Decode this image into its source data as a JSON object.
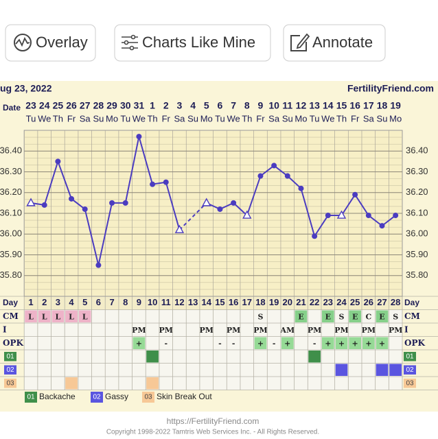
{
  "buttons": [
    "Overlay",
    "Charts Like Mine",
    "Annotate"
  ],
  "chart_data": {
    "type": "line",
    "title": "ug 23, 2022",
    "source": "FertilityFriend.com",
    "x_label": "Date",
    "categories": [
      "23",
      "24",
      "25",
      "26",
      "27",
      "28",
      "29",
      "30",
      "31",
      "1",
      "2",
      "3",
      "4",
      "5",
      "6",
      "7",
      "8",
      "9",
      "10",
      "11",
      "12",
      "13",
      "14",
      "15",
      "16",
      "17",
      "18",
      "19"
    ],
    "weekdays": [
      "Tu",
      "We",
      "Th",
      "Fr",
      "Sa",
      "Su",
      "Mo",
      "Tu",
      "We",
      "Th",
      "Fr",
      "Sa",
      "Su",
      "Mo",
      "Tu",
      "We",
      "Th",
      "Fr",
      "Sa",
      "Su",
      "Mo",
      "Tu",
      "We",
      "Th",
      "Fr",
      "Sa",
      "Su",
      "Mo"
    ],
    "series": [
      {
        "color": "#4b3cc0",
        "values": [
          36.15,
          36.14,
          36.35,
          36.17,
          36.12,
          35.85,
          36.15,
          36.15,
          36.47,
          36.24,
          36.25,
          36.02,
          null,
          36.15,
          36.12,
          36.15,
          36.09,
          36.28,
          36.33,
          36.28,
          36.22,
          35.99,
          36.09,
          36.09,
          36.19,
          36.09,
          36.04,
          36.09
        ],
        "open_points": [
          0,
          11,
          13,
          16,
          23
        ]
      }
    ],
    "ylim": [
      35.7,
      36.5
    ],
    "yticks": [
      {
        "value": 35.8,
        "label": "35.80"
      },
      {
        "value": 35.9,
        "label": "35.90"
      },
      {
        "value": 36.0,
        "label": "36.00"
      },
      {
        "value": 36.1,
        "label": "36.10"
      },
      {
        "value": 36.2,
        "label": "36.20"
      },
      {
        "value": 36.3,
        "label": "36.30"
      },
      {
        "value": 36.4,
        "label": "36.40"
      }
    ],
    "grid": true
  },
  "table": {
    "day_label": "Day",
    "days": [
      1,
      2,
      3,
      4,
      5,
      6,
      7,
      8,
      9,
      10,
      11,
      12,
      13,
      14,
      15,
      16,
      17,
      18,
      19,
      20,
      21,
      22,
      23,
      24,
      25,
      26,
      27,
      28
    ],
    "cell_colors": {
      "L": "#eeb3c8",
      "E": "#86d08a",
      "+": "#96da96"
    },
    "rows": [
      {
        "label": "CM",
        "cells": [
          "L",
          "L",
          "L",
          "L",
          "L",
          null,
          null,
          null,
          null,
          null,
          null,
          null,
          null,
          null,
          null,
          null,
          null,
          "S",
          null,
          null,
          "E",
          null,
          "E",
          "S",
          "E",
          "C",
          "E",
          "S"
        ]
      },
      {
        "label": "I",
        "cells": [
          null,
          null,
          null,
          null,
          null,
          null,
          null,
          null,
          "PM",
          null,
          "PM",
          null,
          null,
          "PM",
          null,
          "PM",
          null,
          "PM",
          null,
          "AM",
          null,
          "PM",
          null,
          "PM",
          null,
          "PM",
          null,
          "PM"
        ]
      },
      {
        "label": "OPK",
        "cells": [
          null,
          null,
          null,
          null,
          null,
          null,
          null,
          null,
          "+",
          null,
          "-",
          null,
          null,
          null,
          "-",
          "-",
          null,
          "+",
          "-",
          "+",
          null,
          "-",
          "+",
          "+",
          "+",
          "+",
          "+",
          null
        ]
      }
    ],
    "symptoms": [
      {
        "code": "01",
        "name": "Backache",
        "color": "#3f8f4a",
        "days": [
          10,
          22
        ]
      },
      {
        "code": "02",
        "name": "Gassy",
        "color": "#5a55e0",
        "days": [
          24,
          27,
          28
        ]
      },
      {
        "code": "03",
        "name": "Skin Break Out",
        "color": "#f7c896",
        "days": [
          4,
          10
        ]
      }
    ]
  },
  "footer": {
    "url": "https://FertilityFriend.com",
    "copyright": "Copyright 1998-2022 Tamtris Web Services Inc. - All Rights Reserved."
  }
}
